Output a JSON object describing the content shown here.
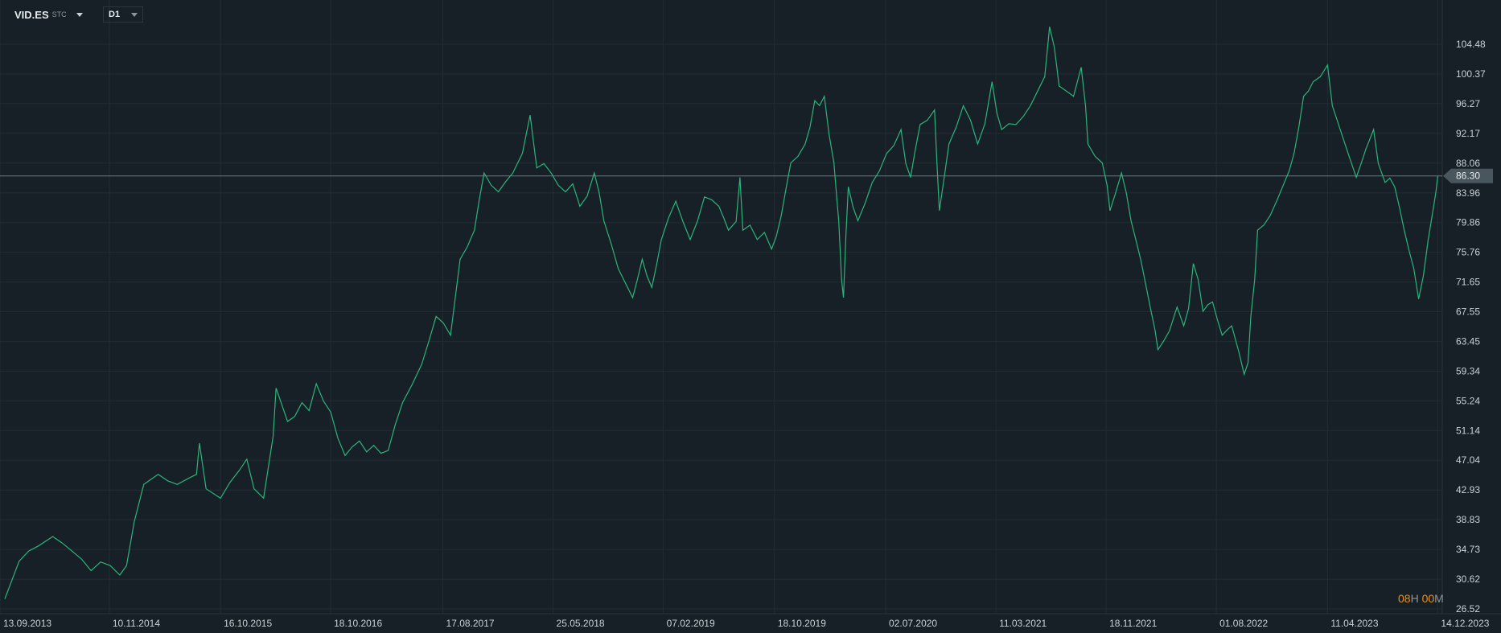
{
  "header": {
    "symbol": "VID.ES",
    "symbol_suffix": "STC",
    "timeframe": "D1"
  },
  "timer": {
    "hours": "08",
    "h_label": "H",
    "minutes": "00",
    "m_label": "M"
  },
  "colors": {
    "background": "#172026",
    "grid": "#222c33",
    "line": "#2db37c",
    "price_line": "#6b777e",
    "price_tag": "#4a565d",
    "text": "#c9d1d6"
  },
  "chart_data": {
    "type": "line",
    "title": "VID.ES",
    "xlabel": "",
    "ylabel": "",
    "x_unit": "bar index",
    "x_ticks": [
      {
        "x": 0,
        "label": "13.09.2013"
      },
      {
        "x": 228,
        "label": "10.11.2014"
      },
      {
        "x": 460,
        "label": "16.10.2015"
      },
      {
        "x": 690,
        "label": "18.10.2016"
      },
      {
        "x": 924,
        "label": "17.08.2017"
      },
      {
        "x": 1154,
        "label": "25.05.2018"
      },
      {
        "x": 1384,
        "label": "07.02.2019"
      },
      {
        "x": 1616,
        "label": "18.10.2019"
      },
      {
        "x": 1848,
        "label": "02.07.2020"
      },
      {
        "x": 2078,
        "label": "11.03.2021"
      },
      {
        "x": 2308,
        "label": "18.11.2021"
      },
      {
        "x": 2538,
        "label": "01.08.2022"
      },
      {
        "x": 2770,
        "label": "11.04.2023"
      },
      {
        "x": 3000,
        "label": "14.12.2023"
      }
    ],
    "y_ticks": [
      "104.48",
      "100.37",
      "96.27",
      "92.17",
      "88.06",
      "83.96",
      "79.86",
      "75.76",
      "71.65",
      "67.55",
      "63.45",
      "59.34",
      "55.24",
      "51.14",
      "47.04",
      "42.93",
      "38.83",
      "34.73",
      "30.62",
      "26.52"
    ],
    "ylim": [
      26.52,
      104.48
    ],
    "last_price": 86.3,
    "last_price_label": "86.30",
    "grid": true,
    "series": [
      {
        "name": "VID.ES",
        "points": [
          [
            10,
            27.9
          ],
          [
            40,
            33.1
          ],
          [
            60,
            34.5
          ],
          [
            80,
            35.2
          ],
          [
            110,
            36.5
          ],
          [
            130,
            35.6
          ],
          [
            150,
            34.5
          ],
          [
            170,
            33.4
          ],
          [
            190,
            31.8
          ],
          [
            210,
            33.0
          ],
          [
            230,
            32.5
          ],
          [
            250,
            31.2
          ],
          [
            264,
            32.5
          ],
          [
            280,
            38.5
          ],
          [
            300,
            43.7
          ],
          [
            330,
            45.1
          ],
          [
            350,
            44.2
          ],
          [
            370,
            43.7
          ],
          [
            395,
            44.6
          ],
          [
            410,
            45.1
          ],
          [
            416,
            49.4
          ],
          [
            430,
            43.1
          ],
          [
            460,
            41.8
          ],
          [
            480,
            44.0
          ],
          [
            500,
            45.7
          ],
          [
            515,
            47.2
          ],
          [
            530,
            43.1
          ],
          [
            550,
            41.8
          ],
          [
            570,
            50.4
          ],
          [
            576,
            57.0
          ],
          [
            600,
            52.4
          ],
          [
            615,
            53.1
          ],
          [
            630,
            55.0
          ],
          [
            645,
            53.9
          ],
          [
            660,
            57.6
          ],
          [
            675,
            55.2
          ],
          [
            690,
            53.7
          ],
          [
            705,
            50.1
          ],
          [
            720,
            47.7
          ],
          [
            735,
            48.9
          ],
          [
            750,
            49.7
          ],
          [
            765,
            48.2
          ],
          [
            780,
            49.1
          ],
          [
            795,
            48.0
          ],
          [
            810,
            48.4
          ],
          [
            825,
            52.0
          ],
          [
            840,
            55.0
          ],
          [
            860,
            57.5
          ],
          [
            880,
            60.3
          ],
          [
            895,
            63.5
          ],
          [
            910,
            66.9
          ],
          [
            925,
            66.0
          ],
          [
            940,
            64.3
          ],
          [
            950,
            69.5
          ],
          [
            960,
            74.8
          ],
          [
            975,
            76.5
          ],
          [
            990,
            78.8
          ],
          [
            1000,
            83.0
          ],
          [
            1010,
            86.7
          ],
          [
            1025,
            85.0
          ],
          [
            1040,
            84.1
          ],
          [
            1055,
            85.5
          ],
          [
            1070,
            86.7
          ],
          [
            1090,
            89.4
          ],
          [
            1106,
            94.7
          ],
          [
            1120,
            87.4
          ],
          [
            1135,
            88.0
          ],
          [
            1150,
            86.7
          ],
          [
            1165,
            85.0
          ],
          [
            1180,
            84.1
          ],
          [
            1195,
            85.2
          ],
          [
            1210,
            82.1
          ],
          [
            1225,
            83.5
          ],
          [
            1240,
            86.7
          ],
          [
            1250,
            84.0
          ],
          [
            1260,
            80.1
          ],
          [
            1275,
            77.0
          ],
          [
            1290,
            73.5
          ],
          [
            1305,
            71.5
          ],
          [
            1320,
            69.5
          ],
          [
            1330,
            72.0
          ],
          [
            1340,
            74.8
          ],
          [
            1350,
            72.5
          ],
          [
            1360,
            70.9
          ],
          [
            1370,
            74.0
          ],
          [
            1380,
            77.5
          ],
          [
            1395,
            80.5
          ],
          [
            1410,
            82.8
          ],
          [
            1425,
            80.0
          ],
          [
            1440,
            77.5
          ],
          [
            1455,
            80.0
          ],
          [
            1470,
            83.4
          ],
          [
            1485,
            83.0
          ],
          [
            1500,
            82.1
          ],
          [
            1510,
            80.5
          ],
          [
            1520,
            78.8
          ],
          [
            1536,
            80.0
          ],
          [
            1544,
            86.1
          ],
          [
            1550,
            78.8
          ],
          [
            1565,
            79.5
          ],
          [
            1580,
            77.5
          ],
          [
            1595,
            78.5
          ],
          [
            1610,
            76.2
          ],
          [
            1620,
            78.0
          ],
          [
            1630,
            80.8
          ],
          [
            1640,
            84.5
          ],
          [
            1650,
            88.1
          ],
          [
            1665,
            89.0
          ],
          [
            1680,
            90.7
          ],
          [
            1690,
            93.0
          ],
          [
            1700,
            96.7
          ],
          [
            1710,
            96.0
          ],
          [
            1720,
            97.3
          ],
          [
            1730,
            92.0
          ],
          [
            1740,
            88.1
          ],
          [
            1745,
            84.0
          ],
          [
            1750,
            80.1
          ],
          [
            1756,
            72.0
          ],
          [
            1760,
            69.5
          ],
          [
            1765,
            78.0
          ],
          [
            1770,
            84.8
          ],
          [
            1780,
            82.0
          ],
          [
            1790,
            80.1
          ],
          [
            1805,
            82.5
          ],
          [
            1820,
            85.4
          ],
          [
            1835,
            87.0
          ],
          [
            1850,
            89.4
          ],
          [
            1865,
            90.5
          ],
          [
            1880,
            92.7
          ],
          [
            1890,
            88.0
          ],
          [
            1900,
            86.1
          ],
          [
            1910,
            90.0
          ],
          [
            1920,
            93.4
          ],
          [
            1935,
            94.0
          ],
          [
            1950,
            95.4
          ],
          [
            1955,
            88.0
          ],
          [
            1960,
            81.5
          ],
          [
            1970,
            86.0
          ],
          [
            1980,
            90.7
          ],
          [
            1995,
            93.0
          ],
          [
            2010,
            96.0
          ],
          [
            2025,
            94.0
          ],
          [
            2040,
            90.7
          ],
          [
            2055,
            93.5
          ],
          [
            2070,
            99.3
          ],
          [
            2080,
            95.0
          ],
          [
            2090,
            92.7
          ],
          [
            2105,
            93.5
          ],
          [
            2120,
            93.4
          ],
          [
            2135,
            94.5
          ],
          [
            2150,
            96.0
          ],
          [
            2165,
            98.0
          ],
          [
            2180,
            100.0
          ],
          [
            2190,
            106.9
          ],
          [
            2200,
            104.0
          ],
          [
            2210,
            98.7
          ],
          [
            2225,
            98.0
          ],
          [
            2240,
            97.3
          ],
          [
            2256,
            101.3
          ],
          [
            2265,
            96.0
          ],
          [
            2270,
            90.7
          ],
          [
            2285,
            89.0
          ],
          [
            2300,
            88.1
          ],
          [
            2310,
            85.0
          ],
          [
            2316,
            81.5
          ],
          [
            2328,
            84.0
          ],
          [
            2340,
            86.7
          ],
          [
            2350,
            84.0
          ],
          [
            2360,
            80.1
          ],
          [
            2370,
            77.5
          ],
          [
            2380,
            74.8
          ],
          [
            2390,
            71.5
          ],
          [
            2400,
            68.2
          ],
          [
            2410,
            65.0
          ],
          [
            2416,
            62.3
          ],
          [
            2428,
            63.5
          ],
          [
            2440,
            64.9
          ],
          [
            2456,
            68.2
          ],
          [
            2470,
            65.6
          ],
          [
            2480,
            68.0
          ],
          [
            2490,
            74.2
          ],
          [
            2500,
            72.0
          ],
          [
            2510,
            67.6
          ],
          [
            2520,
            68.5
          ],
          [
            2530,
            68.9
          ],
          [
            2540,
            66.5
          ],
          [
            2550,
            64.3
          ],
          [
            2560,
            65.0
          ],
          [
            2570,
            65.6
          ],
          [
            2585,
            62.0
          ],
          [
            2596,
            58.9
          ],
          [
            2604,
            60.5
          ],
          [
            2610,
            66.9
          ],
          [
            2618,
            72.0
          ],
          [
            2624,
            78.8
          ],
          [
            2637,
            79.5
          ],
          [
            2650,
            80.8
          ],
          [
            2665,
            83.0
          ],
          [
            2680,
            85.4
          ],
          [
            2690,
            87.0
          ],
          [
            2700,
            89.4
          ],
          [
            2710,
            93.0
          ],
          [
            2720,
            97.3
          ],
          [
            2730,
            98.0
          ],
          [
            2740,
            99.3
          ],
          [
            2755,
            100.0
          ],
          [
            2770,
            101.6
          ],
          [
            2780,
            96.0
          ],
          [
            2790,
            94.0
          ],
          [
            2800,
            92.0
          ],
          [
            2815,
            89.0
          ],
          [
            2830,
            86.1
          ],
          [
            2840,
            88.0
          ],
          [
            2850,
            90.0
          ],
          [
            2866,
            92.7
          ],
          [
            2876,
            88.0
          ],
          [
            2890,
            85.4
          ],
          [
            2900,
            86.0
          ],
          [
            2910,
            84.8
          ],
          [
            2920,
            82.0
          ],
          [
            2930,
            78.8
          ],
          [
            2940,
            76.0
          ],
          [
            2950,
            73.5
          ],
          [
            2960,
            69.3
          ],
          [
            2970,
            72.5
          ],
          [
            2980,
            77.5
          ],
          [
            2990,
            81.5
          ],
          [
            2996,
            84.0
          ],
          [
            3000,
            86.3
          ]
        ]
      }
    ]
  }
}
